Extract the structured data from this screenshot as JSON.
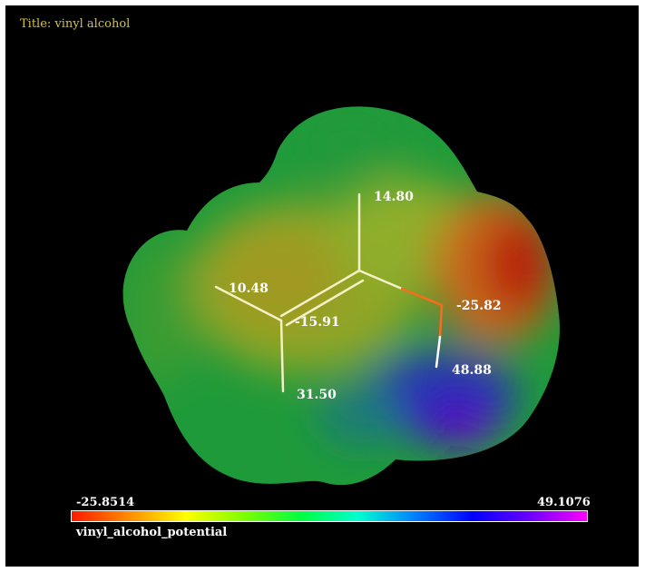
{
  "title": "Title: vinyl alcohol",
  "atom_labels": {
    "h_top": "14.80",
    "c_left_h": "10.48",
    "c_center": "-15.91",
    "o_atom": "-25.82",
    "h_hydroxyl": "48.88",
    "h_bottom": "31.50"
  },
  "colorbar": {
    "min": "-25.8514",
    "max": "49.1076",
    "name": "vinyl_alcohol_potential",
    "stops": [
      "#ff1a00",
      "#ff8c00",
      "#ffff00",
      "#7fff00",
      "#00ff40",
      "#00ffd0",
      "#0080ff",
      "#0000ff",
      "#6a00ff",
      "#ff00ff"
    ]
  },
  "colors": {
    "title": "#d8c23a",
    "background": "#000000"
  }
}
